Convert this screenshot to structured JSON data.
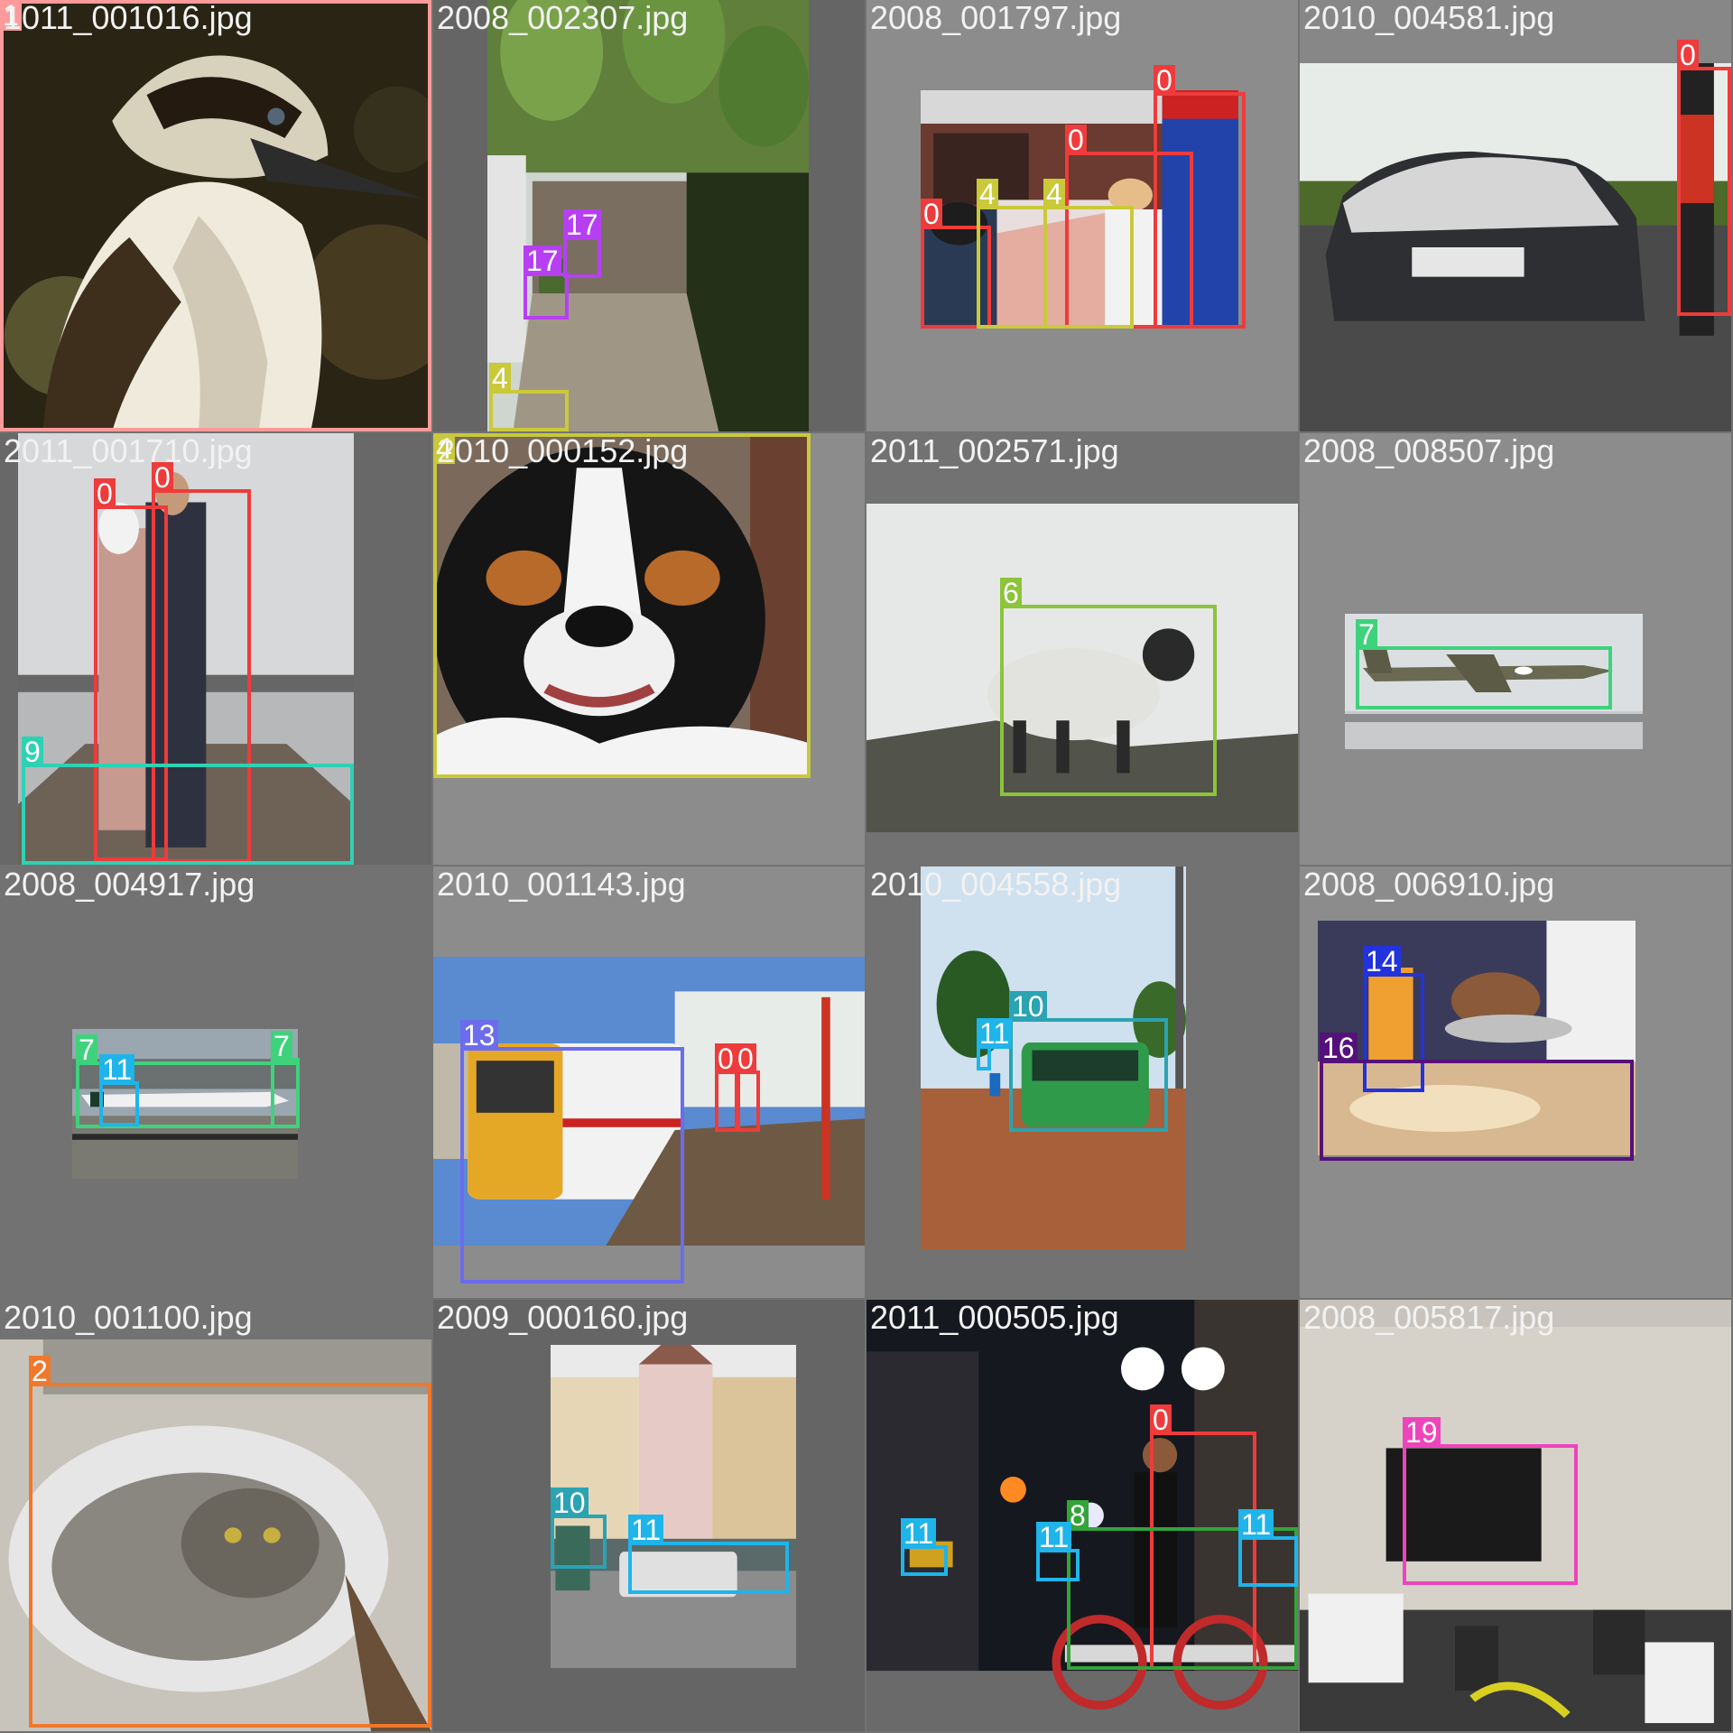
{
  "tiles": [
    {
      "file": "1011_001016.jpg",
      "boxes": [
        {
          "label": "1",
          "color": "#ff9a9a"
        }
      ]
    },
    {
      "file": "2008_002307.jpg",
      "boxes": [
        {
          "label": "17",
          "color": "#b63ff2"
        },
        {
          "label": "17",
          "color": "#b63ff2"
        },
        {
          "label": "4",
          "color": "#c9c93a"
        }
      ]
    },
    {
      "file": "2008_001797.jpg",
      "boxes": [
        {
          "label": "0",
          "color": "#ee3b3b"
        },
        {
          "label": "0",
          "color": "#ee3b3b"
        },
        {
          "label": "0",
          "color": "#ee3b3b"
        },
        {
          "label": "4",
          "color": "#c9c93a"
        },
        {
          "label": "4",
          "color": "#c9c93a"
        }
      ]
    },
    {
      "file": "2010_004581.jpg",
      "boxes": [
        {
          "label": "0",
          "color": "#ee3b3b"
        }
      ]
    },
    {
      "file": "2011_001710.jpg",
      "boxes": [
        {
          "label": "0",
          "color": "#ee3b3b"
        },
        {
          "label": "0",
          "color": "#ee3b3b"
        },
        {
          "label": "9",
          "color": "#2ed1b4"
        }
      ]
    },
    {
      "file": "2010_000152.jpg",
      "boxes": [
        {
          "label": "4",
          "color": "#c9c93a"
        }
      ]
    },
    {
      "file": "2011_002571.jpg",
      "boxes": [
        {
          "label": "6",
          "color": "#8cc43a"
        }
      ]
    },
    {
      "file": "2008_008507.jpg",
      "boxes": [
        {
          "label": "7",
          "color": "#3fd27c"
        }
      ]
    },
    {
      "file": "2008_004917.jpg",
      "boxes": [
        {
          "label": "7",
          "color": "#3fd27c"
        },
        {
          "label": "7",
          "color": "#3fd27c"
        },
        {
          "label": "11",
          "color": "#1fb4ea"
        }
      ]
    },
    {
      "file": "2010_001143.jpg",
      "boxes": [
        {
          "label": "13",
          "color": "#6b6cee"
        },
        {
          "label": "0",
          "color": "#ee3b3b"
        },
        {
          "label": "0",
          "color": "#ee3b3b"
        }
      ]
    },
    {
      "file": "2010_004558.jpg",
      "boxes": [
        {
          "label": "10",
          "color": "#2aa3b3"
        },
        {
          "label": "11",
          "color": "#1fb4ea"
        }
      ]
    },
    {
      "file": "2008_006910.jpg",
      "boxes": [
        {
          "label": "14",
          "color": "#2233dd"
        },
        {
          "label": "16",
          "color": "#55117a"
        }
      ]
    },
    {
      "file": "2010_001100.jpg",
      "boxes": [
        {
          "label": "2",
          "color": "#f0782c"
        }
      ]
    },
    {
      "file": "2009_000160.jpg",
      "boxes": [
        {
          "label": "10",
          "color": "#2aa3b3"
        },
        {
          "label": "11",
          "color": "#1fb4ea"
        }
      ]
    },
    {
      "file": "2011_000505.jpg",
      "boxes": [
        {
          "label": "0",
          "color": "#ee3b3b"
        },
        {
          "label": "8",
          "color": "#33a33a"
        },
        {
          "label": "11",
          "color": "#1fb4ea"
        },
        {
          "label": "11",
          "color": "#1fb4ea"
        },
        {
          "label": "11",
          "color": "#1fb4ea"
        }
      ]
    },
    {
      "file": "2008_005817.jpg",
      "boxes": [
        {
          "label": "19",
          "color": "#ee44bb"
        }
      ]
    }
  ]
}
